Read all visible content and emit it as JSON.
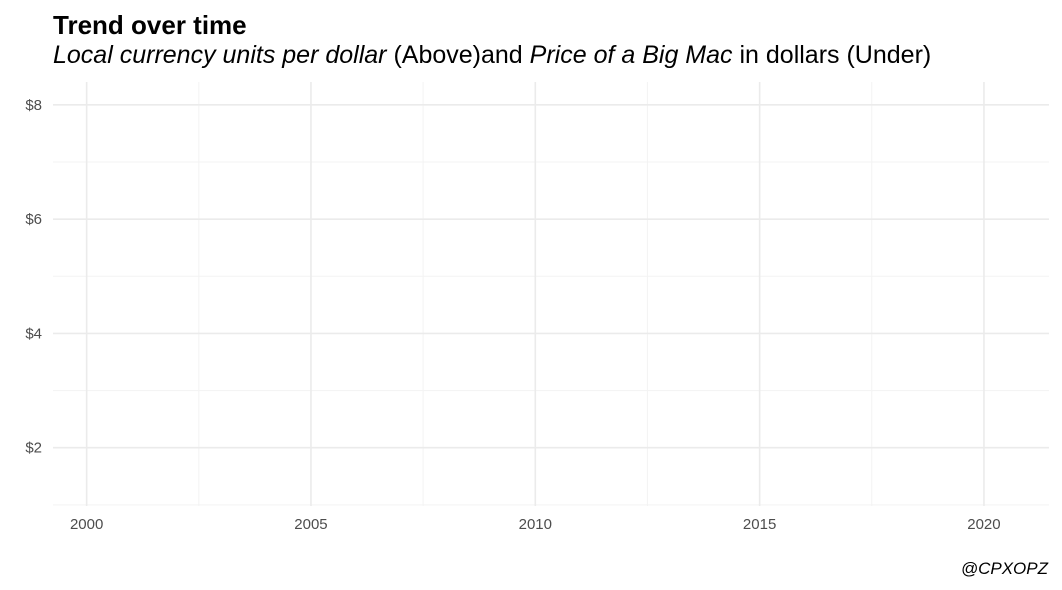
{
  "chart_data": {
    "type": "line",
    "title": "Trend over time",
    "subtitle": {
      "part1_italic": "Local currency units per dollar",
      "part2": "(Above)",
      "part3": "and",
      "part4_italic": "Price of a Big Mac",
      "part5": "in dollars (Under)"
    },
    "xlabel": "",
    "ylabel": "",
    "x_ticks": [
      {
        "value": 2000,
        "label": "2000"
      },
      {
        "value": 2005,
        "label": "2005"
      },
      {
        "value": 2010,
        "label": "2010"
      },
      {
        "value": 2015,
        "label": "2015"
      },
      {
        "value": 2020,
        "label": "2020"
      }
    ],
    "x_minor_ticks": [
      2002.5,
      2007.5,
      2012.5,
      2017.5
    ],
    "y_ticks": [
      {
        "value": 2,
        "label": "$2"
      },
      {
        "value": 4,
        "label": "$4"
      },
      {
        "value": 6,
        "label": "$6"
      },
      {
        "value": 8,
        "label": "$8"
      }
    ],
    "y_minor_ticks": [
      1,
      3,
      5,
      7
    ],
    "xlim": [
      1999.25,
      2021.45
    ],
    "ylim": [
      0.98,
      8.4
    ],
    "series": [],
    "grid": true,
    "legend": "none",
    "caption": "@CPXOPZ",
    "colors": {
      "grid_major": "#ebebeb",
      "grid_minor": "#f3f3f3",
      "tick_text": "#4d4d4d"
    }
  }
}
